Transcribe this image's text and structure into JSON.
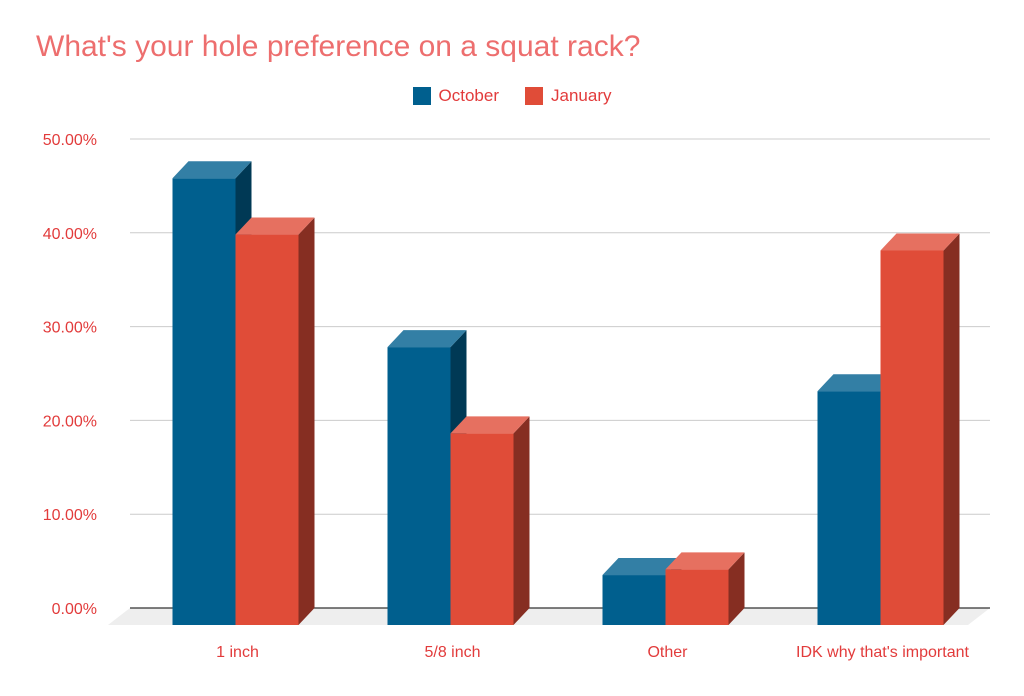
{
  "chart_data": {
    "type": "bar",
    "title": "What's your hole preference on a squat rack?",
    "categories": [
      "1 inch",
      "5/8 inch",
      "Other",
      "IDK why that's important"
    ],
    "series": [
      {
        "name": "October",
        "values": [
          44.0,
          26.0,
          1.7,
          21.3
        ],
        "color": "#005f8e"
      },
      {
        "name": "January",
        "values": [
          38.0,
          16.8,
          2.3,
          36.3
        ],
        "color": "#e04c38"
      }
    ],
    "yticks": [
      "0.00%",
      "10.00%",
      "20.00%",
      "30.00%",
      "40.00%",
      "50.00%"
    ],
    "ylim": [
      0,
      50
    ],
    "xlabel": "",
    "ylabel": "",
    "grid": true,
    "legend_position": "top"
  }
}
